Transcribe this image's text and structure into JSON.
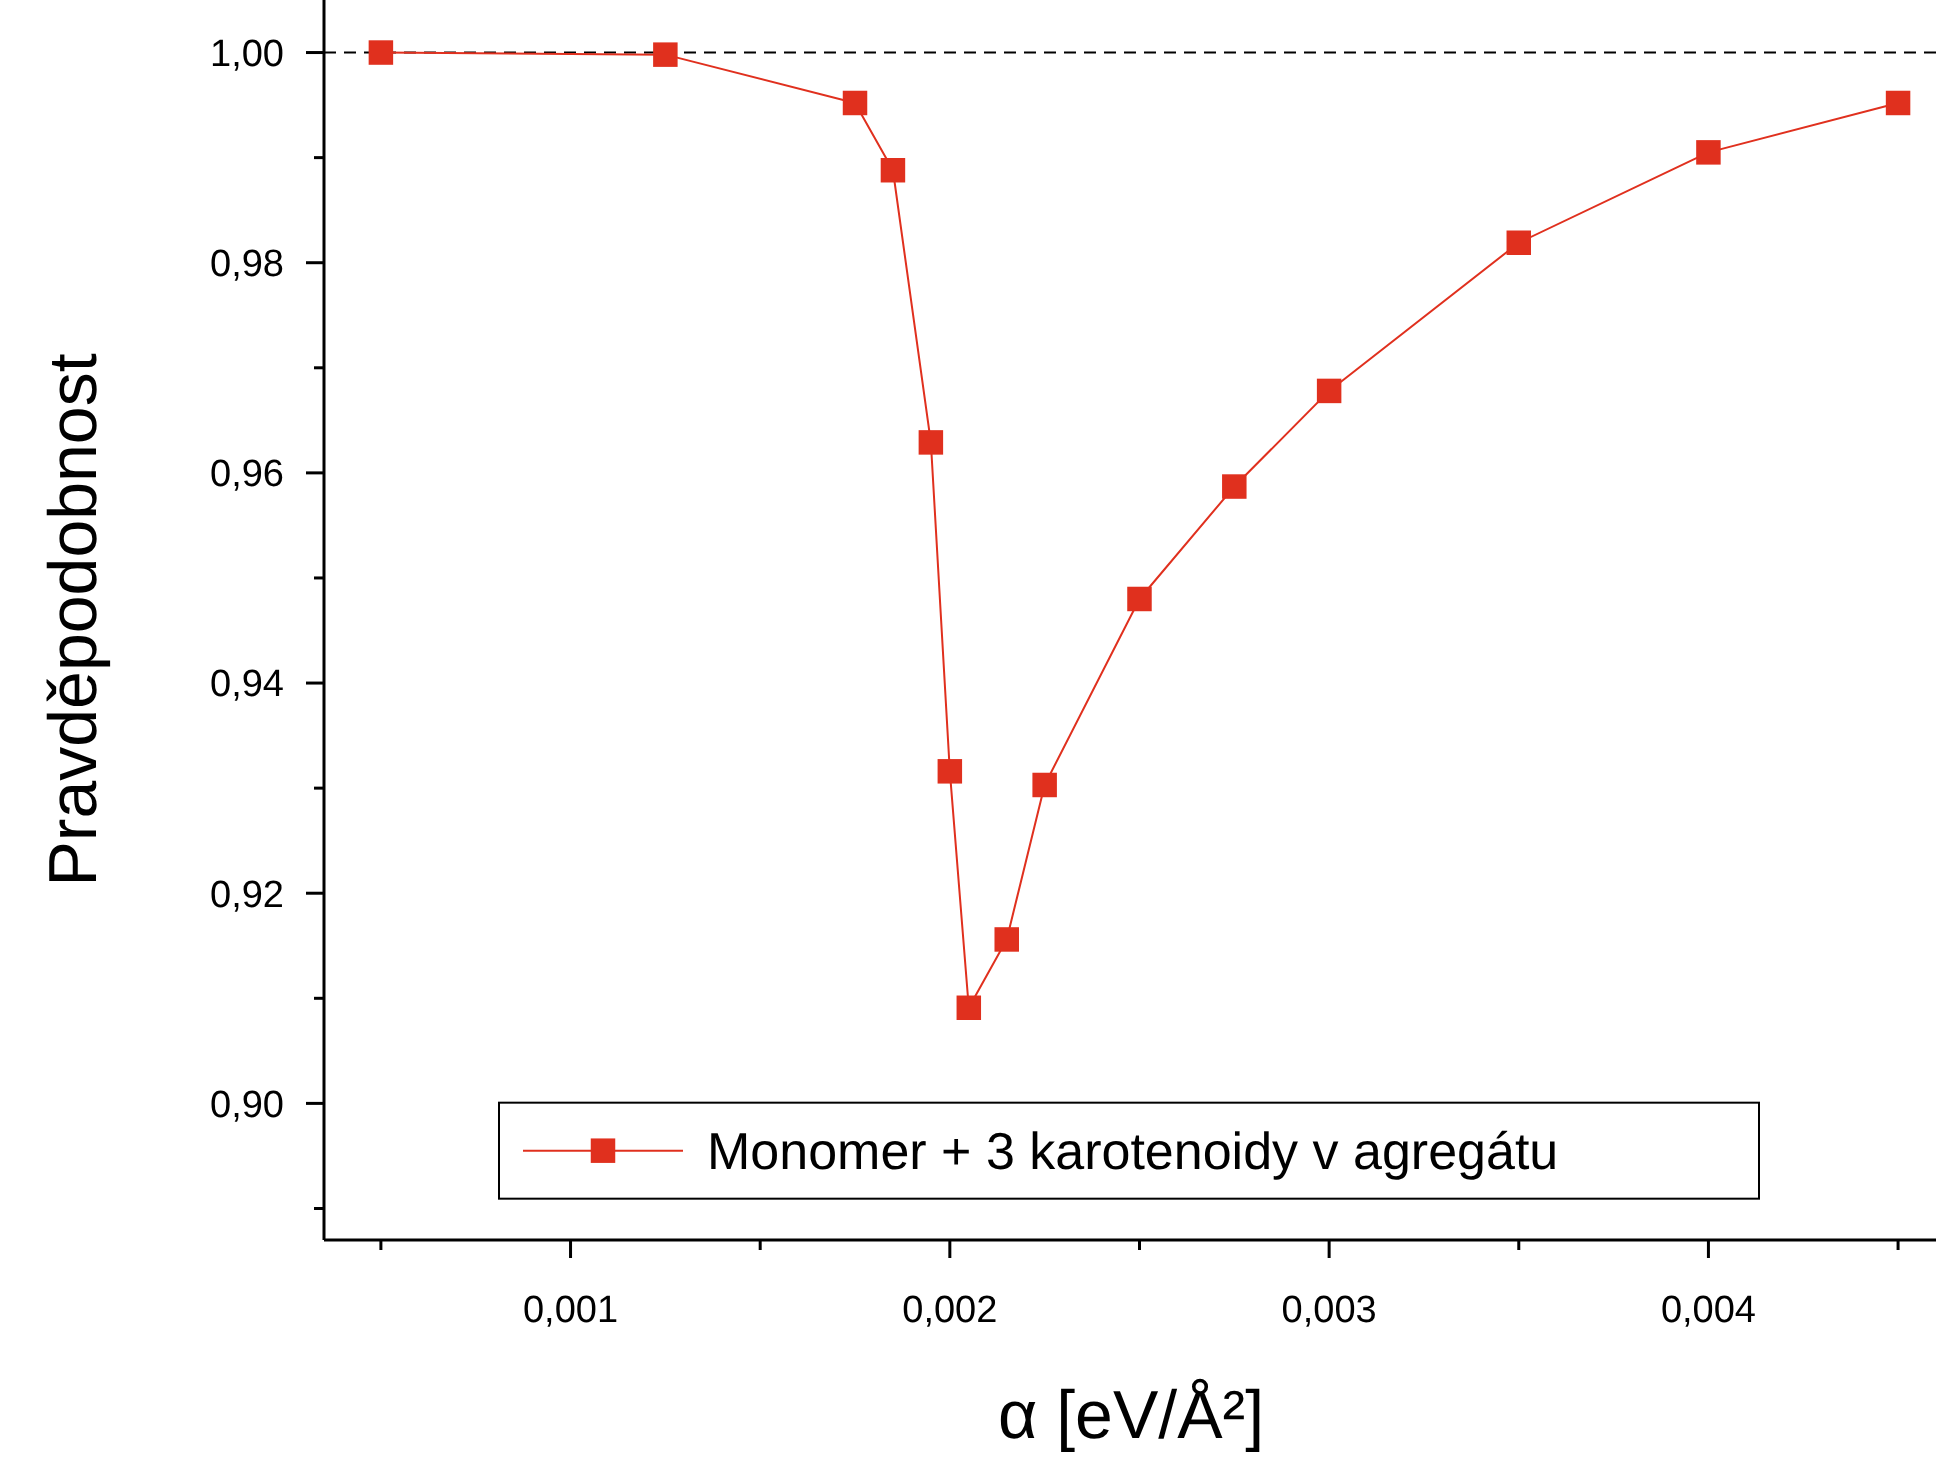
{
  "chart_data": {
    "type": "line",
    "xlabel": "α [eV/Å²]",
    "ylabel": "Pravděpodobnost",
    "x": [
      0.0005,
      0.00125,
      0.00175,
      0.00185,
      0.00195,
      0.002,
      0.00205,
      0.00215,
      0.00225,
      0.0025,
      0.00275,
      0.003,
      0.0035,
      0.004,
      0.0045
    ],
    "series": [
      {
        "name": "Monomer + 3 karotenoidy v agregátu",
        "color": "#e0301e",
        "values": [
          1.0,
          0.9998,
          0.9952,
          0.9888,
          0.9629,
          0.9316,
          0.9091,
          0.9156,
          0.9303,
          0.948,
          0.9587,
          0.9678,
          0.9819,
          0.9905,
          0.9952
        ]
      }
    ],
    "marker": "square",
    "legend": "bottom",
    "grid": false,
    "xlim": [
      0.00035,
      0.0046
    ],
    "ylim": [
      0.887,
      1.005
    ],
    "xticks": [
      {
        "value": 0.0005,
        "label": null
      },
      {
        "value": 0.001,
        "label": "0,001"
      },
      {
        "value": 0.0015,
        "label": null
      },
      {
        "value": 0.002,
        "label": "0,002"
      },
      {
        "value": 0.0025,
        "label": null
      },
      {
        "value": 0.003,
        "label": "0,003"
      },
      {
        "value": 0.0035,
        "label": null
      },
      {
        "value": 0.004,
        "label": "0,004"
      },
      {
        "value": 0.0045,
        "label": null
      }
    ],
    "yticks": [
      {
        "value": 0.89,
        "label": null
      },
      {
        "value": 0.9,
        "label": "0,90"
      },
      {
        "value": 0.91,
        "label": null
      },
      {
        "value": 0.92,
        "label": "0,92"
      },
      {
        "value": 0.93,
        "label": null
      },
      {
        "value": 0.94,
        "label": "0,94"
      },
      {
        "value": 0.95,
        "label": null
      },
      {
        "value": 0.96,
        "label": "0,96"
      },
      {
        "value": 0.97,
        "label": null
      },
      {
        "value": 0.98,
        "label": "0,98"
      },
      {
        "value": 0.99,
        "label": null
      },
      {
        "value": 1.0,
        "label": "1,00"
      }
    ],
    "ref_lines": [
      {
        "axis": "y",
        "value": 1.0,
        "color": "#000000",
        "line_style": "dashed"
      }
    ]
  }
}
